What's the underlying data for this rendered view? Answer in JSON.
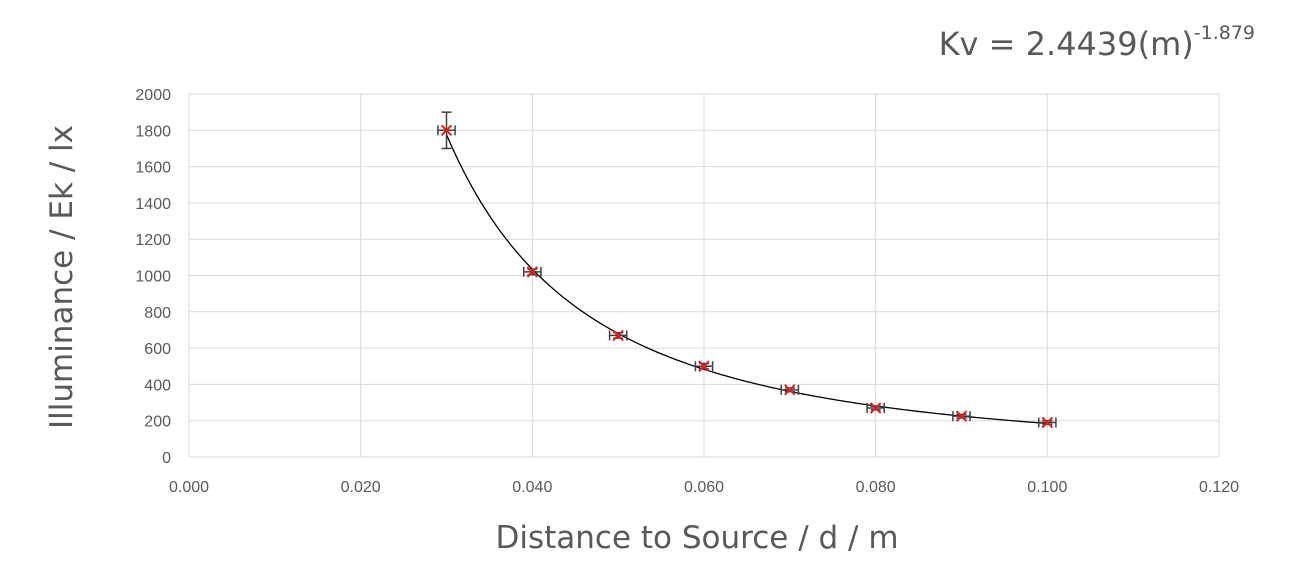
{
  "chart_data": {
    "type": "scatter",
    "equation": {
      "prefix": "Kv = 2.4439(m)",
      "exponent": "-1.879",
      "coefficient": 2.4439,
      "power": -1.879
    },
    "xlabel": "Distance to Source / d / m",
    "ylabel": "Illuminance / Ek / lx",
    "xlim": [
      0,
      0.12
    ],
    "ylim": [
      0,
      2000
    ],
    "x_ticks": [
      "0.000",
      "0.020",
      "0.040",
      "0.060",
      "0.080",
      "0.100",
      "0.120"
    ],
    "y_ticks": [
      "0",
      "200",
      "400",
      "600",
      "800",
      "1000",
      "1200",
      "1400",
      "1600",
      "1800",
      "2000"
    ],
    "grid": true,
    "trendline": "power",
    "marker": "x",
    "marker_color": "#e02020",
    "errorbar_color": "#404040",
    "series": [
      {
        "x": [
          0.03,
          0.04,
          0.05,
          0.06,
          0.07,
          0.08,
          0.09,
          0.1
        ],
        "y": [
          1800,
          1020,
          670,
          500,
          370,
          270,
          225,
          190
        ],
        "y_err": [
          100,
          15,
          15,
          15,
          10,
          10,
          10,
          10
        ],
        "x_err": [
          0.001,
          0.001,
          0.001,
          0.001,
          0.001,
          0.001,
          0.001,
          0.001
        ]
      }
    ]
  }
}
